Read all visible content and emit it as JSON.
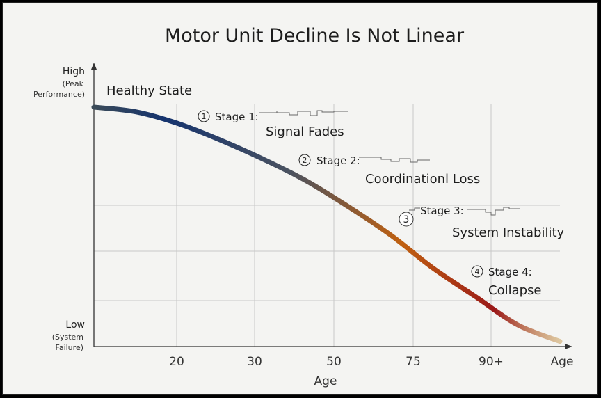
{
  "chart_data": {
    "type": "line",
    "title": "Motor Unit Decline Is Not Linear",
    "xlabel": "Age",
    "x_axis_end_label": "Age",
    "categories": [
      "20",
      "30",
      "50",
      "75",
      "90+"
    ],
    "y_axis": {
      "high_label": "High",
      "high_sub": [
        "(Peak",
        "Performance)"
      ],
      "low_label": "Low",
      "low_sub": [
        "(System",
        "Failure)"
      ]
    },
    "ylim": [
      0,
      1
    ],
    "series": [
      {
        "x": [
          0,
          0.5,
          1,
          1.5,
          2,
          2.5,
          3,
          3.5,
          4,
          4.5,
          5,
          5.5
        ],
        "values": [
          1.0,
          0.98,
          0.93,
          0.86,
          0.78,
          0.69,
          0.58,
          0.46,
          0.32,
          0.2,
          0.08,
          0.01
        ]
      }
    ],
    "grid": true,
    "annotations": {
      "healthy": "Healthy State",
      "stages": [
        {
          "num": "1",
          "label": "Stage 1:",
          "desc": "Signal Fades"
        },
        {
          "num": "2",
          "label": "Stage 2:",
          "desc": "Coordinationl Loss"
        },
        {
          "num": "3",
          "label": "Stage 3:",
          "desc": "System Instability"
        },
        {
          "num": "4",
          "label": "Stage 4:",
          "desc": "Collapse"
        }
      ]
    },
    "gradient_colors": [
      "#3a4a58",
      "#15336e",
      "#4a5260",
      "#c06010",
      "#9a1818",
      "#c0902a"
    ]
  }
}
